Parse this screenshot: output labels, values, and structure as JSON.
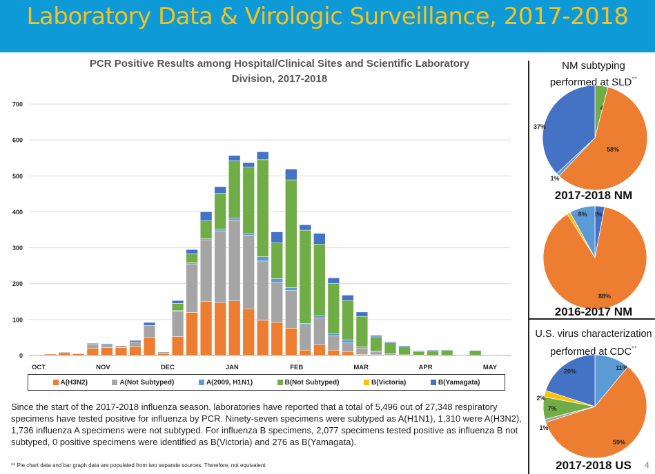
{
  "header": {
    "title": "Laboratory Data & Virologic Surveillance, 2017-2018"
  },
  "colors": {
    "banner": "#0e9ad6",
    "title_text": "#f7c21c",
    "A(H3N2)": "#ed7d31",
    "A(Not Subtyped)": "#a5a5a5",
    "A(2009, H1N1)": "#5b9bd5",
    "B(Not Subtyped)": "#70ad47",
    "B(Victoria)": "#ffc000",
    "B(Yamagata)": "#4472c4"
  },
  "chart_data": [
    {
      "type": "bar",
      "stacked": true,
      "title": "PCR Positive Results among Hospital/Clinical Sites and Scientific Laboratory Division, 2017-2018",
      "title_lines": [
        "PCR Positive Results among Hospital/Clinical Sites and Scientific Laboratory",
        "Division, 2017-2018"
      ],
      "ylim": [
        0,
        700
      ],
      "yticks": [
        "0",
        "100",
        "200",
        "300",
        "400",
        "500",
        "600",
        "700"
      ],
      "grid": true,
      "month_labels": [
        "OCT",
        "NOV",
        "DEC",
        "JAN",
        "FEB",
        "MAR",
        "APR",
        "MAY"
      ],
      "legend_position": "bottom",
      "series": [
        {
          "name": "A(H3N2)",
          "values": [
            2,
            4,
            8,
            5,
            20,
            22,
            22,
            25,
            50,
            5,
            53,
            120,
            150,
            147,
            152,
            130,
            98,
            92,
            76,
            15,
            30,
            15,
            10,
            3,
            2,
            1,
            0,
            0,
            0,
            0,
            0,
            0,
            0,
            0
          ]
        },
        {
          "name": "A(Not Subtyped)",
          "values": [
            0,
            1,
            2,
            1,
            12,
            8,
            5,
            13,
            34,
            5,
            70,
            135,
            172,
            200,
            225,
            205,
            165,
            112,
            105,
            70,
            75,
            40,
            25,
            18,
            8,
            4,
            2,
            1,
            0,
            0,
            0,
            0,
            0,
            0
          ]
        },
        {
          "name": "A(2009, H1N1)",
          "values": [
            0,
            0,
            0,
            0,
            0,
            0,
            0,
            0,
            0,
            0,
            2,
            3,
            3,
            5,
            5,
            5,
            12,
            10,
            8,
            4,
            5,
            6,
            8,
            3,
            2,
            0,
            0,
            0,
            0,
            0,
            0,
            0,
            0,
            0
          ]
        },
        {
          "name": "B(Not Subtyped)",
          "values": [
            0,
            0,
            0,
            0,
            0,
            0,
            0,
            0,
            0,
            0,
            20,
            25,
            50,
            100,
            160,
            185,
            270,
            100,
            300,
            260,
            200,
            140,
            110,
            85,
            40,
            30,
            22,
            10,
            13,
            15,
            2,
            14,
            2,
            2
          ]
        },
        {
          "name": "B(Victoria)",
          "values": [
            0,
            0,
            0,
            0,
            0,
            0,
            0,
            0,
            0,
            0,
            0,
            0,
            0,
            0,
            0,
            0,
            0,
            0,
            0,
            0,
            0,
            0,
            0,
            0,
            0,
            0,
            0,
            0,
            0,
            0,
            0,
            0,
            0,
            0
          ]
        },
        {
          "name": "B(Yamagata)",
          "values": [
            0,
            0,
            0,
            0,
            2,
            3,
            0,
            4,
            8,
            0,
            8,
            12,
            25,
            18,
            15,
            12,
            22,
            30,
            30,
            15,
            30,
            15,
            15,
            12,
            4,
            3,
            3,
            2,
            2,
            1,
            1,
            1,
            1,
            0
          ]
        }
      ]
    },
    {
      "type": "pie",
      "title": "NM subtyping performed at SLD",
      "title_lines": [
        "NM subtyping",
        "performed at SLD"
      ],
      "title_mark": "**",
      "label": "2017-2018 NM",
      "slices": [
        {
          "name": "B(Not Subtyped)",
          "value": 4,
          "label": "4%"
        },
        {
          "name": "A(H3N2)",
          "value": 58,
          "label": "58%"
        },
        {
          "name": "A(2009, H1N1)",
          "value": 1,
          "label": "1%"
        },
        {
          "name": "B(Yamagata)",
          "value": 37,
          "label": "37%"
        }
      ]
    },
    {
      "type": "pie",
      "title": "",
      "label": "2016-2017 NM",
      "slices": [
        {
          "name": "B(Yamagata)",
          "value": 3,
          "label": "3%"
        },
        {
          "name": "A(H3N2)",
          "value": 88,
          "label": "88%"
        },
        {
          "name": "B(Victoria)",
          "value": 1,
          "label": ""
        },
        {
          "name": "A(2009, H1N1)",
          "value": 8,
          "label": "8%"
        }
      ]
    },
    {
      "type": "pie",
      "title": "U.S. virus characterization performed at CDC",
      "title_lines": [
        "U.S. virus characterization",
        "performed at CDC"
      ],
      "title_mark": "**",
      "label": "2017-2018 US",
      "slices": [
        {
          "name": "A(2009, H1N1)",
          "value": 11,
          "label": "11%"
        },
        {
          "name": "A(H3N2)",
          "value": 59,
          "label": "59%"
        },
        {
          "name": "A(Not Subtyped)",
          "value": 1,
          "label": "1%"
        },
        {
          "name": "B(Not Subtyped)",
          "value": 7,
          "label": "7%"
        },
        {
          "name": "B(Victoria)",
          "value": 2,
          "label": "2%"
        },
        {
          "name": "B(Yamagata)",
          "value": 20,
          "label": "20%"
        }
      ]
    }
  ],
  "summary": "Since the start of the 2017-2018 influenza season, laboratories have reported that a total of 5,496 out of 27,348 respiratory specimens have tested positive for influenza by PCR. Ninety-seven specimens were subtyped as A(H1N1), 1,310 were A(H3N2), 1,736 influenza A specimens were not subtyped. For influenza B specimens, 2,077 specimens tested positive as influenza B not subtyped, 0 positive specimens were identified as B(Victoria) and 276 as B(Yamagata).",
  "footnote": "** Pie chart data and bar graph data are populated from two separate sources. Therefore, not equivalent",
  "page_number": "4"
}
